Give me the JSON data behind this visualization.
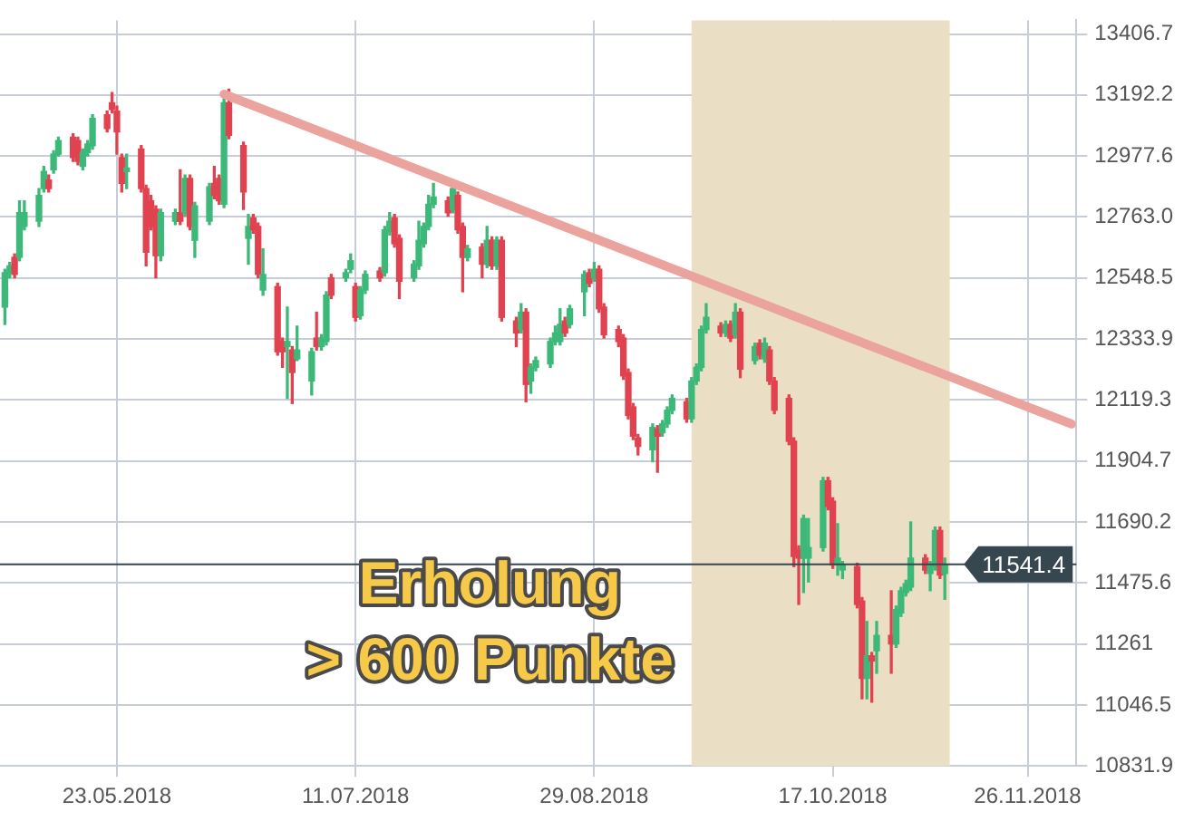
{
  "chart_data": {
    "type": "candlestick",
    "x": [
      "2018-04-30",
      "2018-05-01",
      "2018-05-02",
      "2018-05-03",
      "2018-05-04",
      "2018-05-07",
      "2018-05-08",
      "2018-05-09",
      "2018-05-10",
      "2018-05-11",
      "2018-05-14",
      "2018-05-15",
      "2018-05-16",
      "2018-05-17",
      "2018-05-18",
      "2018-05-21",
      "2018-05-22",
      "2018-05-23",
      "2018-05-24",
      "2018-05-25",
      "2018-05-28",
      "2018-05-29",
      "2018-05-30",
      "2018-05-31",
      "2018-06-01",
      "2018-06-04",
      "2018-06-05",
      "2018-06-06",
      "2018-06-07",
      "2018-06-08",
      "2018-06-11",
      "2018-06-12",
      "2018-06-13",
      "2018-06-14",
      "2018-06-15",
      "2018-06-18",
      "2018-06-19",
      "2018-06-20",
      "2018-06-21",
      "2018-06-22",
      "2018-06-25",
      "2018-06-26",
      "2018-06-27",
      "2018-06-28",
      "2018-06-29",
      "2018-07-02",
      "2018-07-03",
      "2018-07-04",
      "2018-07-05",
      "2018-07-06",
      "2018-07-09",
      "2018-07-10",
      "2018-07-11",
      "2018-07-12",
      "2018-07-13",
      "2018-07-16",
      "2018-07-17",
      "2018-07-18",
      "2018-07-19",
      "2018-07-20",
      "2018-07-23",
      "2018-07-24",
      "2018-07-25",
      "2018-07-26",
      "2018-07-27",
      "2018-07-30",
      "2018-07-31",
      "2018-08-01",
      "2018-08-02",
      "2018-08-03",
      "2018-08-06",
      "2018-08-07",
      "2018-08-08",
      "2018-08-09",
      "2018-08-10",
      "2018-08-13",
      "2018-08-14",
      "2018-08-15",
      "2018-08-16",
      "2018-08-17",
      "2018-08-20",
      "2018-08-21",
      "2018-08-22",
      "2018-08-23",
      "2018-08-24",
      "2018-08-27",
      "2018-08-28",
      "2018-08-29",
      "2018-08-30",
      "2018-08-31",
      "2018-09-03",
      "2018-09-04",
      "2018-09-05",
      "2018-09-06",
      "2018-09-07",
      "2018-09-10",
      "2018-09-11",
      "2018-09-12",
      "2018-09-13",
      "2018-09-14",
      "2018-09-17",
      "2018-09-18",
      "2018-09-19",
      "2018-09-20",
      "2018-09-21",
      "2018-09-24",
      "2018-09-25",
      "2018-09-26",
      "2018-09-27",
      "2018-09-28",
      "2018-10-01",
      "2018-10-02",
      "2018-10-03",
      "2018-10-04",
      "2018-10-05",
      "2018-10-08",
      "2018-10-09",
      "2018-10-10",
      "2018-10-11",
      "2018-10-12",
      "2018-10-15",
      "2018-10-16",
      "2018-10-17",
      "2018-10-18",
      "2018-10-19",
      "2018-10-22",
      "2018-10-23",
      "2018-10-24",
      "2018-10-25",
      "2018-10-26",
      "2018-10-29",
      "2018-10-30",
      "2018-10-31",
      "2018-11-01",
      "2018-11-02",
      "2018-11-05",
      "2018-11-06",
      "2018-11-07",
      "2018-11-08",
      "2018-11-09"
    ],
    "ohlc": [
      [
        12446,
        12579,
        12385,
        12567
      ],
      [
        12567,
        12603,
        12549,
        12591
      ],
      [
        12621,
        12633,
        12549,
        12561
      ],
      [
        12621,
        12820,
        12609,
        12778
      ],
      [
        12730,
        12820,
        12718,
        12778
      ],
      [
        12748,
        12863,
        12730,
        12839
      ],
      [
        12863,
        12941,
        12851,
        12923
      ],
      [
        12893,
        12911,
        12851,
        12863
      ],
      [
        12929,
        12996,
        12917,
        12984
      ],
      [
        12984,
        13044,
        12978,
        13032
      ],
      [
        13044,
        13056,
        12959,
        12972
      ],
      [
        13032,
        13044,
        12947,
        12959
      ],
      [
        12941,
        13002,
        12929,
        12990
      ],
      [
        12990,
        13032,
        12978,
        13020
      ],
      [
        13014,
        13123,
        13002,
        13110
      ],
      [
        13123,
        13135,
        13062,
        13074
      ],
      [
        13165,
        13201,
        13129,
        13141
      ],
      [
        13135,
        13153,
        12984,
        13062
      ],
      [
        12972,
        12984,
        12851,
        12881
      ],
      [
        12923,
        12984,
        12863,
        12935
      ],
      [
        13002,
        13014,
        12851,
        12863
      ],
      [
        12863,
        12875,
        12591,
        12639
      ],
      [
        12820,
        12839,
        12718,
        12730
      ],
      [
        12790,
        12802,
        12549,
        12627
      ],
      [
        12627,
        12790,
        12609,
        12778
      ],
      [
        12748,
        12790,
        12736,
        12778
      ],
      [
        12778,
        12929,
        12736,
        12748
      ],
      [
        12778,
        12911,
        12766,
        12899
      ],
      [
        12899,
        12911,
        12718,
        12730
      ],
      [
        12681,
        12814,
        12621,
        12802
      ],
      [
        12748,
        12881,
        12736,
        12869
      ],
      [
        12881,
        12941,
        12827,
        12839
      ],
      [
        12899,
        12911,
        12808,
        12820
      ],
      [
        12808,
        13195,
        12796,
        13165
      ],
      [
        13165,
        13213,
        13038,
        13050
      ],
      [
        13014,
        13026,
        12790,
        12851
      ],
      [
        12688,
        12772,
        12597,
        12730
      ],
      [
        12760,
        12772,
        12706,
        12718
      ],
      [
        12730,
        12742,
        12549,
        12561
      ],
      [
        12506,
        12651,
        12488,
        12561
      ],
      [
        12518,
        12530,
        12277,
        12289
      ],
      [
        12325,
        12337,
        12234,
        12289
      ],
      [
        12307,
        12446,
        12125,
        12325
      ],
      [
        12295,
        12307,
        12107,
        12216
      ],
      [
        12264,
        12379,
        12258,
        12295
      ],
      [
        12186,
        12301,
        12137,
        12289
      ],
      [
        12337,
        12428,
        12295,
        12307
      ],
      [
        12307,
        12349,
        12295,
        12337
      ],
      [
        12325,
        12500,
        12313,
        12488
      ],
      [
        12549,
        12561,
        12476,
        12488
      ],
      [
        12549,
        12579,
        12537,
        12567
      ],
      [
        12579,
        12633,
        12567,
        12609
      ],
      [
        12518,
        12530,
        12397,
        12410
      ],
      [
        12416,
        12518,
        12404,
        12506
      ],
      [
        12506,
        12573,
        12494,
        12561
      ],
      [
        12573,
        12585,
        12537,
        12549
      ],
      [
        12567,
        12730,
        12555,
        12718
      ],
      [
        12712,
        12778,
        12700,
        12748
      ],
      [
        12760,
        12772,
        12657,
        12669
      ],
      [
        12688,
        12700,
        12476,
        12537
      ],
      [
        12549,
        12609,
        12537,
        12597
      ],
      [
        12591,
        12748,
        12579,
        12681
      ],
      [
        12669,
        12742,
        12657,
        12730
      ],
      [
        12730,
        12839,
        12718,
        12808
      ],
      [
        12808,
        12881,
        12796,
        12833
      ],
      [
        12820,
        12833,
        12766,
        12778
      ],
      [
        12790,
        12869,
        12778,
        12863
      ],
      [
        12839,
        12851,
        12706,
        12718
      ],
      [
        12730,
        12742,
        12500,
        12621
      ],
      [
        12621,
        12663,
        12609,
        12651
      ],
      [
        12657,
        12669,
        12549,
        12597
      ],
      [
        12597,
        12730,
        12585,
        12681
      ],
      [
        12681,
        12693,
        12579,
        12591
      ],
      [
        12591,
        12693,
        12579,
        12681
      ],
      [
        12681,
        12693,
        12397,
        12410
      ],
      [
        12397,
        12410,
        12307,
        12355
      ],
      [
        12367,
        12458,
        12355,
        12428
      ],
      [
        12428,
        12440,
        12113,
        12174
      ],
      [
        12186,
        12246,
        12143,
        12234
      ],
      [
        12234,
        12270,
        12222,
        12258
      ],
      [
        12246,
        12337,
        12234,
        12325
      ],
      [
        12325,
        12379,
        12313,
        12355
      ],
      [
        12325,
        12440,
        12313,
        12385
      ],
      [
        12397,
        12410,
        12343,
        12355
      ],
      [
        12385,
        12452,
        12373,
        12440
      ],
      [
        12500,
        12573,
        12416,
        12561
      ],
      [
        12567,
        12579,
        12518,
        12530
      ],
      [
        12549,
        12603,
        12537,
        12579
      ],
      [
        12579,
        12591,
        12428,
        12440
      ],
      [
        12446,
        12458,
        12337,
        12349
      ],
      [
        12367,
        12379,
        12307,
        12325
      ],
      [
        12337,
        12349,
        12192,
        12204
      ],
      [
        12216,
        12228,
        12053,
        12065
      ],
      [
        12095,
        12107,
        11980,
        11992
      ],
      [
        11986,
        11998,
        11926,
        11956
      ],
      [
        11944,
        12035,
        11902,
        12023
      ],
      [
        12017,
        12029,
        11865,
        11992
      ],
      [
        12004,
        12047,
        11992,
        12035
      ],
      [
        12035,
        12095,
        12023,
        12083
      ],
      [
        12083,
        12137,
        12071,
        12125
      ],
      [
        12113,
        12125,
        12041,
        12053
      ],
      [
        12053,
        12198,
        12041,
        12186
      ],
      [
        12186,
        12246,
        12174,
        12234
      ],
      [
        12234,
        12379,
        12222,
        12367
      ],
      [
        12367,
        12458,
        12355,
        12410
      ],
      [
        12379,
        12391,
        12343,
        12355
      ],
      [
        12355,
        12397,
        12343,
        12385
      ],
      [
        12385,
        12397,
        12325,
        12337
      ],
      [
        12349,
        12458,
        12337,
        12428
      ],
      [
        12428,
        12440,
        12198,
        12228
      ],
      [
        12258,
        12319,
        12246,
        12307
      ],
      [
        12319,
        12331,
        12264,
        12277
      ],
      [
        12264,
        12337,
        12252,
        12319
      ],
      [
        12295,
        12307,
        12174,
        12186
      ],
      [
        12186,
        12198,
        12071,
        12083
      ],
      [
        12125,
        12137,
        11962,
        11974
      ],
      [
        11974,
        11986,
        11533,
        11569
      ],
      [
        11594,
        11606,
        11400,
        11563
      ],
      [
        11563,
        11714,
        11442,
        11702
      ],
      [
        11563,
        11702,
        11479,
        11600
      ],
      [
        11600,
        11847,
        11588,
        11835
      ],
      [
        11835,
        11847,
        11733,
        11745
      ],
      [
        11763,
        11775,
        11527,
        11539
      ],
      [
        11539,
        11684,
        11503,
        11563
      ],
      [
        11521,
        11551,
        11491,
        11539
      ],
      [
        11533,
        11545,
        11388,
        11400
      ],
      [
        11412,
        11424,
        11068,
        11140
      ],
      [
        11140,
        11340,
        11068,
        11219
      ],
      [
        11219,
        11231,
        11056,
        11201
      ],
      [
        11237,
        11340,
        11158,
        11291
      ],
      [
        11291,
        11448,
        11158,
        11261
      ],
      [
        11261,
        11394,
        11249,
        11382
      ],
      [
        11370,
        11460,
        11358,
        11448
      ],
      [
        11442,
        11485,
        11430,
        11473
      ],
      [
        11461,
        11690,
        11449,
        11563
      ],
      [
        11563,
        11575,
        11509,
        11521
      ],
      [
        11509,
        11551,
        11448,
        11539
      ],
      [
        11533,
        11672,
        11521,
        11660
      ],
      [
        11660,
        11672,
        11491,
        11503
      ],
      [
        11509,
        11563,
        11418,
        11541.4
      ]
    ],
    "colors": [
      "#3cb878",
      "#3cb878",
      "#e0434f",
      "#3cb878",
      "#3cb878",
      "#3cb878",
      "#3cb878",
      "#e0434f",
      "#3cb878",
      "#3cb878",
      "#e0434f",
      "#e0434f",
      "#3cb878",
      "#3cb878",
      "#3cb878",
      "#e0434f",
      "#e0434f",
      "#e0434f",
      "#e0434f",
      "#3cb878",
      "#e0434f",
      "#e0434f",
      "#e0434f",
      "#e0434f",
      "#3cb878",
      "#3cb878",
      "#e0434f",
      "#3cb878",
      "#e0434f",
      "#3cb878",
      "#3cb878",
      "#e0434f",
      "#e0434f",
      "#3cb878",
      "#e0434f",
      "#e0434f",
      "#3cb878",
      "#e0434f",
      "#e0434f",
      "#3cb878",
      "#e0434f",
      "#e0434f",
      "#3cb878",
      "#e0434f",
      "#3cb878",
      "#3cb878",
      "#e0434f",
      "#3cb878",
      "#3cb878",
      "#e0434f",
      "#3cb878",
      "#3cb878",
      "#e0434f",
      "#3cb878",
      "#3cb878",
      "#e0434f",
      "#3cb878",
      "#3cb878",
      "#e0434f",
      "#e0434f",
      "#3cb878",
      "#3cb878",
      "#3cb878",
      "#3cb878",
      "#3cb878",
      "#e0434f",
      "#3cb878",
      "#e0434f",
      "#e0434f",
      "#3cb878",
      "#e0434f",
      "#3cb878",
      "#e0434f",
      "#3cb878",
      "#e0434f",
      "#e0434f",
      "#3cb878",
      "#e0434f",
      "#3cb878",
      "#3cb878",
      "#3cb878",
      "#3cb878",
      "#3cb878",
      "#e0434f",
      "#3cb878",
      "#3cb878",
      "#e0434f",
      "#3cb878",
      "#e0434f",
      "#e0434f",
      "#e0434f",
      "#e0434f",
      "#e0434f",
      "#e0434f",
      "#e0434f",
      "#3cb878",
      "#e0434f",
      "#3cb878",
      "#3cb878",
      "#3cb878",
      "#e0434f",
      "#3cb878",
      "#3cb878",
      "#3cb878",
      "#3cb878",
      "#e0434f",
      "#3cb878",
      "#e0434f",
      "#3cb878",
      "#e0434f",
      "#3cb878",
      "#e0434f",
      "#3cb878",
      "#e0434f",
      "#e0434f",
      "#e0434f",
      "#e0434f",
      "#e0434f",
      "#3cb878",
      "#3cb878",
      "#3cb878",
      "#e0434f",
      "#e0434f",
      "#3cb878",
      "#3cb878",
      "#e0434f",
      "#e0434f",
      "#3cb878",
      "#e0434f",
      "#3cb878",
      "#e0434f",
      "#3cb878",
      "#3cb878",
      "#3cb878",
      "#3cb878",
      "#e0434f",
      "#3cb878",
      "#3cb878",
      "#e0434f",
      "#3cb878"
    ],
    "series": [
      {
        "type": "line",
        "x": [
          "2018-06-14",
          "2018-12-05"
        ],
        "values": [
          13195,
          12035
        ],
        "color": "#eba39d"
      }
    ],
    "marker": "none",
    "xlim": [
      "2018-04-29",
      "2018-12-06"
    ],
    "xticks": [
      {
        "value": "2018-05-23",
        "label": "23.05.2018"
      },
      {
        "value": "2018-07-11",
        "label": "11.07.2018"
      },
      {
        "value": "2018-08-29",
        "label": "29.08.2018"
      },
      {
        "value": "2018-10-17",
        "label": "17.10.2018"
      },
      {
        "value": "2018-11-26",
        "label": "26.11.2018"
      }
    ],
    "ylim": [
      10831.9,
      13455
    ],
    "yticks": [
      10831.9,
      11046.5,
      11261.0,
      11475.6,
      11690.2,
      11904.7,
      12119.3,
      12333.9,
      12548.5,
      {
        "value": 12763.0,
        "label": "12763.0"
      },
      12977.6,
      13192.2,
      13406.7
    ],
    "ref_lines": [
      {
        "axis": "y",
        "value": 11541.4,
        "label": "11541.4",
        "color": "#37474f"
      }
    ],
    "bands": [
      {
        "axis": "x",
        "from": "2018-09-18",
        "to": "2018-11-10",
        "color": "#eadfc4"
      }
    ],
    "annotations": [
      "Erholung",
      "> 600 Punkte"
    ],
    "grid": true,
    "legend": false
  }
}
